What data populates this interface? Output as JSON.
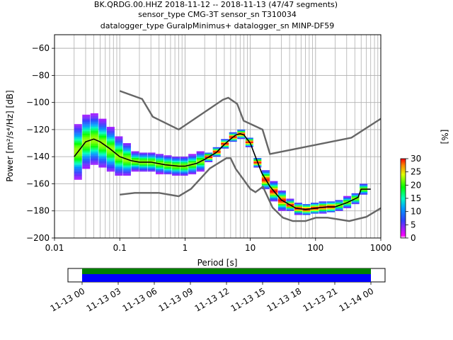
{
  "title_lines": [
    "BK.QRDG.00.HHZ   2018-11-12 -- 2018-11-13  (47/47 segments)",
    "sensor_type CMG-3T sensor_sn T310034",
    "datalogger_type GuralpMinimus+ datalogger_sn MINP-DF59"
  ],
  "chart_data": {
    "type": "heatmap",
    "subtype": "probabilistic power spectral density",
    "xlabel": "Period [s]",
    "ylabel": "Power [m²/s⁴/Hz] [dB]",
    "xscale": "log",
    "xlim": [
      0.01,
      1000
    ],
    "ylim": [
      -200,
      -50
    ],
    "xticks": [
      0.01,
      0.1,
      1,
      10,
      100,
      1000
    ],
    "xtick_labels": [
      "0.01",
      "0.1",
      "1",
      "10",
      "100",
      "1000"
    ],
    "yticks": [
      -200,
      -180,
      -160,
      -140,
      -120,
      -100,
      -80,
      -60
    ],
    "ytick_labels": [
      "−200",
      "−180",
      "−160",
      "−140",
      "−120",
      "−100",
      "−80",
      "−60"
    ],
    "grid": true,
    "colorbar": {
      "label": "[%]",
      "range": [
        0,
        30
      ],
      "ticks": [
        0,
        5,
        10,
        15,
        20,
        25,
        30
      ],
      "colors": [
        "#ffffff",
        "#ff00ff",
        "#0000ff",
        "#00ffff",
        "#00ff00",
        "#ffff00",
        "#ff0000"
      ]
    },
    "series": [
      {
        "role": "mode",
        "color": "#000000",
        "points": [
          [
            0.02,
            -140
          ],
          [
            0.025,
            -134
          ],
          [
            0.03,
            -129
          ],
          [
            0.04,
            -127
          ],
          [
            0.05,
            -129
          ],
          [
            0.07,
            -134
          ],
          [
            0.1,
            -140
          ],
          [
            0.15,
            -143
          ],
          [
            0.2,
            -144
          ],
          [
            0.3,
            -144
          ],
          [
            0.5,
            -146
          ],
          [
            0.8,
            -147
          ],
          [
            1,
            -147
          ],
          [
            1.5,
            -145
          ],
          [
            2,
            -142
          ],
          [
            3,
            -137
          ],
          [
            4,
            -131
          ],
          [
            5,
            -127
          ],
          [
            6,
            -124
          ],
          [
            7,
            -123
          ],
          [
            8,
            -124
          ],
          [
            10,
            -130
          ],
          [
            12,
            -140
          ],
          [
            15,
            -152
          ],
          [
            20,
            -162
          ],
          [
            30,
            -172
          ],
          [
            50,
            -178
          ],
          [
            70,
            -179
          ],
          [
            100,
            -178
          ],
          [
            150,
            -177
          ],
          [
            200,
            -177
          ],
          [
            300,
            -174
          ],
          [
            450,
            -170
          ],
          [
            500,
            -164
          ],
          [
            700,
            -164
          ]
        ]
      },
      {
        "role": "NHNM",
        "color": "#666666",
        "points": [
          [
            0.1,
            -91.5
          ],
          [
            0.22,
            -97.4
          ],
          [
            0.32,
            -110.5
          ],
          [
            0.8,
            -120
          ],
          [
            3.8,
            -98
          ],
          [
            4.6,
            -96.5
          ],
          [
            6.3,
            -101
          ],
          [
            7.9,
            -113.5
          ],
          [
            15.4,
            -120
          ],
          [
            20,
            -138
          ],
          [
            354.8,
            -126
          ],
          [
            1000,
            -112
          ]
        ]
      },
      {
        "role": "NLNM",
        "color": "#666666",
        "points": [
          [
            0.1,
            -168
          ],
          [
            0.17,
            -166.7
          ],
          [
            0.4,
            -166.7
          ],
          [
            0.8,
            -169.2
          ],
          [
            1.24,
            -163.7
          ],
          [
            2.4,
            -148.6
          ],
          [
            4.3,
            -141.1
          ],
          [
            5,
            -141.1
          ],
          [
            6,
            -149
          ],
          [
            10,
            -163.8
          ],
          [
            12,
            -166.2
          ],
          [
            15.6,
            -162.1
          ],
          [
            21.9,
            -177.5
          ],
          [
            31.6,
            -185
          ],
          [
            45,
            -187.5
          ],
          [
            70,
            -187.5
          ],
          [
            101,
            -185
          ],
          [
            154,
            -185
          ],
          [
            328,
            -187.5
          ],
          [
            600,
            -184.4
          ],
          [
            1000,
            -178
          ]
        ]
      }
    ]
  },
  "timeline": {
    "tick_labels": [
      "11-13 00",
      "11-13 03",
      "11-13 06",
      "11-13 09",
      "11-13 12",
      "11-13 15",
      "11-13 18",
      "11-13 21",
      "11-14 00"
    ],
    "coverage_colors": [
      "#008000",
      "#0000ff"
    ],
    "coverage_fraction": [
      0,
      1
    ]
  }
}
